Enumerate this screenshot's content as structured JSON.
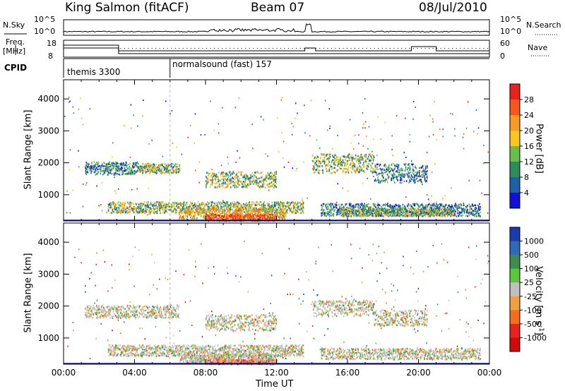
{
  "header": {
    "title": "King Salmon (fitACF)",
    "beam": "Beam 07",
    "date": "08/Jul/2010"
  },
  "strip": {
    "nsky_label": "N.Sky",
    "nsky_ticks": [
      "10^5",
      "10^0"
    ],
    "nsearch_label": "N.Search",
    "nsearch_ticks": [
      "10^5",
      "10^0"
    ],
    "freq_label_1": "Freq.",
    "freq_label_2": "[MHz]",
    "freq_ticks": [
      "18",
      "8"
    ],
    "nave_label": "Nave",
    "nave_ticks": [
      "60",
      "0"
    ],
    "cpid_label": "CPID",
    "cpid_segments": [
      {
        "label": "themis 3300",
        "start_h": 0
      },
      {
        "label": "normalsound (fast) 157",
        "start_h": 6
      }
    ]
  },
  "axes": {
    "xlabel": "Time UT",
    "x_ticks": [
      "00:00",
      "04:00",
      "08:00",
      "12:00",
      "16:00",
      "20:00",
      "00:00"
    ],
    "y_ticks": [
      "1000",
      "2000",
      "3000",
      "4000"
    ]
  },
  "chart_data": [
    {
      "type": "heatmap",
      "name": "power",
      "ylabel": "Slant Range [km]",
      "colorbar_label": "Power [dB]",
      "colorbar_ticks": [
        "28",
        "24",
        "20",
        "16",
        "12",
        "8",
        "4"
      ],
      "colorbar_colors": [
        "#e8231f",
        "#f8571c",
        "#f89b24",
        "#fac81c",
        "#68be4c",
        "#2e8c5a",
        "#2060a8",
        "#1010d8"
      ],
      "x_range_h": [
        0,
        24
      ],
      "y_range_km": [
        180,
        4600
      ],
      "regions": [
        {
          "t": [
            1.2,
            4.2
          ],
          "r": [
            1650,
            2050
          ],
          "level": "low"
        },
        {
          "t": [
            4.2,
            6.5
          ],
          "r": [
            1700,
            2000
          ],
          "level": "mid"
        },
        {
          "t": [
            8.0,
            12.0
          ],
          "r": [
            1250,
            1750
          ],
          "level": "mid"
        },
        {
          "t": [
            14.0,
            17.5
          ],
          "r": [
            1700,
            2300
          ],
          "level": "mid"
        },
        {
          "t": [
            17.5,
            20.5
          ],
          "r": [
            1400,
            2000
          ],
          "level": "low"
        },
        {
          "t": [
            2.5,
            13.5
          ],
          "r": [
            450,
            800
          ],
          "level": "mid"
        },
        {
          "t": [
            6.5,
            12.5
          ],
          "r": [
            250,
            600
          ],
          "level": "high"
        },
        {
          "t": [
            8.0,
            12.0
          ],
          "r": [
            200,
            420
          ],
          "level": "max"
        },
        {
          "t": [
            14.5,
            23.5
          ],
          "r": [
            350,
            750
          ],
          "level": "low"
        },
        {
          "t": [
            15.5,
            22.0
          ],
          "r": [
            350,
            600
          ],
          "level": "mid"
        }
      ]
    },
    {
      "type": "heatmap",
      "name": "velocity",
      "ylabel": "Slant Range [km]",
      "colorbar_label": "Velocity [m s^-1]",
      "colorbar_ticks": [
        "1000",
        "500",
        "100",
        "25",
        "-25",
        "-100",
        "-500",
        "-1000"
      ],
      "colorbar_colors": [
        "#1a3ab0",
        "#2e6ab8",
        "#3c8c54",
        "#5ac83c",
        "#c0c0c0",
        "#f0a040",
        "#f07020",
        "#e8231f",
        "#d00a0a"
      ],
      "x_range_h": [
        0,
        24
      ],
      "y_range_km": [
        180,
        4600
      ],
      "regions": [
        {
          "t": [
            1.2,
            6.5
          ],
          "r": [
            1650,
            2050
          ],
          "class": "near-zero"
        },
        {
          "t": [
            8.0,
            12.0
          ],
          "r": [
            1250,
            1750
          ],
          "class": "near-zero"
        },
        {
          "t": [
            14.0,
            17.5
          ],
          "r": [
            1700,
            2200
          ],
          "class": "near-zero"
        },
        {
          "t": [
            17.5,
            20.5
          ],
          "r": [
            1400,
            1900
          ],
          "class": "near-zero"
        },
        {
          "t": [
            2.5,
            13.5
          ],
          "r": [
            450,
            800
          ],
          "class": "near-zero"
        },
        {
          "t": [
            6.5,
            12.0
          ],
          "r": [
            250,
            500
          ],
          "class": "near-zero"
        },
        {
          "t": [
            8.0,
            12.0
          ],
          "r": [
            200,
            350
          ],
          "class": "negative"
        },
        {
          "t": [
            14.5,
            23.5
          ],
          "r": [
            350,
            700
          ],
          "class": "near-zero"
        }
      ]
    }
  ]
}
